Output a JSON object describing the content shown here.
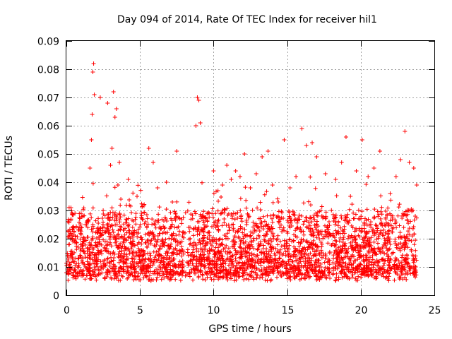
{
  "chart_data": {
    "type": "scatter",
    "title": "Day 094 of 2014, Rate Of TEC Index for receiver hil1",
    "xlabel": "GPS time / hours",
    "ylabel": "ROTI / TECUs",
    "xlim": [
      0,
      25
    ],
    "ylim": [
      0,
      0.09
    ],
    "xticks": [
      0,
      5,
      10,
      15,
      20,
      25
    ],
    "xtick_labels": [
      "0",
      "5",
      "10",
      "15",
      "20",
      "25"
    ],
    "yticks": [
      0,
      0.01,
      0.02,
      0.03,
      0.04,
      0.05,
      0.06,
      0.07,
      0.08,
      0.09
    ],
    "ytick_labels": [
      "0",
      "0.01",
      "0.02",
      "0.03",
      "0.04",
      "0.05",
      "0.06",
      "0.07",
      "0.08",
      "0.09"
    ],
    "grid": true,
    "marker": "+",
    "series": [
      {
        "name": "ROTI",
        "color": "#ff0000",
        "x": [
          0.1,
          0.2,
          0.4,
          0.6,
          0.8,
          1.0,
          1.2,
          1.5,
          1.6,
          1.7,
          1.75,
          1.8,
          1.85,
          1.9,
          2.1,
          2.3,
          2.5,
          2.8,
          3.0,
          3.1,
          3.2,
          3.3,
          3.4,
          3.5,
          3.6,
          3.7,
          3.9,
          4.2,
          4.5,
          4.8,
          5.1,
          5.4,
          5.6,
          5.9,
          6.0,
          6.2,
          6.5,
          6.8,
          7.2,
          7.5,
          7.9,
          8.3,
          8.8,
          8.9,
          9.0,
          9.1,
          9.3,
          9.7,
          10.0,
          10.3,
          10.6,
          10.9,
          11.2,
          11.5,
          11.8,
          12.1,
          12.5,
          12.9,
          13.3,
          13.7,
          14.0,
          14.4,
          14.8,
          15.2,
          15.6,
          16.0,
          16.3,
          16.7,
          17.0,
          17.3,
          17.6,
          17.9,
          18.3,
          18.7,
          19.0,
          19.3,
          19.7,
          20.1,
          20.5,
          20.9,
          21.3,
          21.7,
          22.0,
          22.4,
          22.7,
          23.0,
          23.3,
          23.6,
          23.8
        ],
        "y": [
          0.012,
          0.018,
          0.015,
          0.021,
          0.017,
          0.024,
          0.019,
          0.026,
          0.045,
          0.055,
          0.064,
          0.079,
          0.082,
          0.071,
          0.022,
          0.07,
          0.03,
          0.068,
          0.046,
          0.052,
          0.072,
          0.063,
          0.066,
          0.039,
          0.047,
          0.034,
          0.023,
          0.041,
          0.024,
          0.035,
          0.029,
          0.026,
          0.052,
          0.047,
          0.021,
          0.038,
          0.019,
          0.04,
          0.033,
          0.051,
          0.016,
          0.024,
          0.06,
          0.07,
          0.069,
          0.061,
          0.023,
          0.029,
          0.044,
          0.037,
          0.039,
          0.046,
          0.041,
          0.044,
          0.042,
          0.05,
          0.038,
          0.043,
          0.049,
          0.051,
          0.039,
          0.033,
          0.055,
          0.038,
          0.042,
          0.059,
          0.053,
          0.054,
          0.049,
          0.03,
          0.043,
          0.006,
          0.041,
          0.047,
          0.056,
          0.035,
          0.044,
          0.055,
          0.042,
          0.045,
          0.051,
          0.027,
          0.036,
          0.042,
          0.048,
          0.058,
          0.047,
          0.045,
          0.039
        ],
        "typical_range": [
          0.005,
          0.035
        ]
      }
    ]
  }
}
